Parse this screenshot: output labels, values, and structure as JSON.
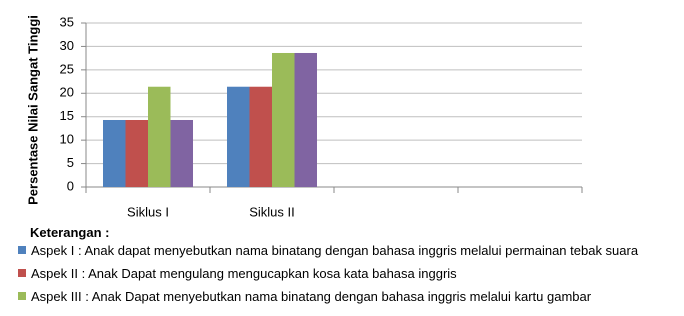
{
  "chart_data": {
    "type": "bar",
    "y_label": "Persentase Nilai Sangat Tinggi",
    "categories": [
      "Siklus I",
      "Siklus II",
      null,
      null
    ],
    "series": [
      {
        "name": "Aspek I : Anak dapat menyebutkan nama binatang dengan bahasa inggris melalui permainan tebak suara",
        "color": "#4f81bd",
        "values": [
          14.3,
          21.4,
          null,
          null
        ]
      },
      {
        "name": "Aspek II : Anak Dapat mengulang mengucapkan kosa kata bahasa inggris",
        "color": "#c0504d",
        "values": [
          14.3,
          21.4,
          null,
          null
        ]
      },
      {
        "name": "Aspek III : Anak Dapat menyebutkan nama binatang dengan bahasa inggris melalui kartu gambar",
        "color": "#9bbb59",
        "values": [
          21.4,
          28.6,
          null,
          null
        ]
      },
      {
        "color": "#8064a2",
        "values": [
          14.3,
          28.6,
          null,
          null
        ]
      }
    ],
    "legend_title": "Keterangan :",
    "ylim": [
      0,
      35
    ],
    "yticks": [
      0,
      5,
      10,
      15,
      20,
      25,
      30,
      35
    ],
    "grid": true
  }
}
